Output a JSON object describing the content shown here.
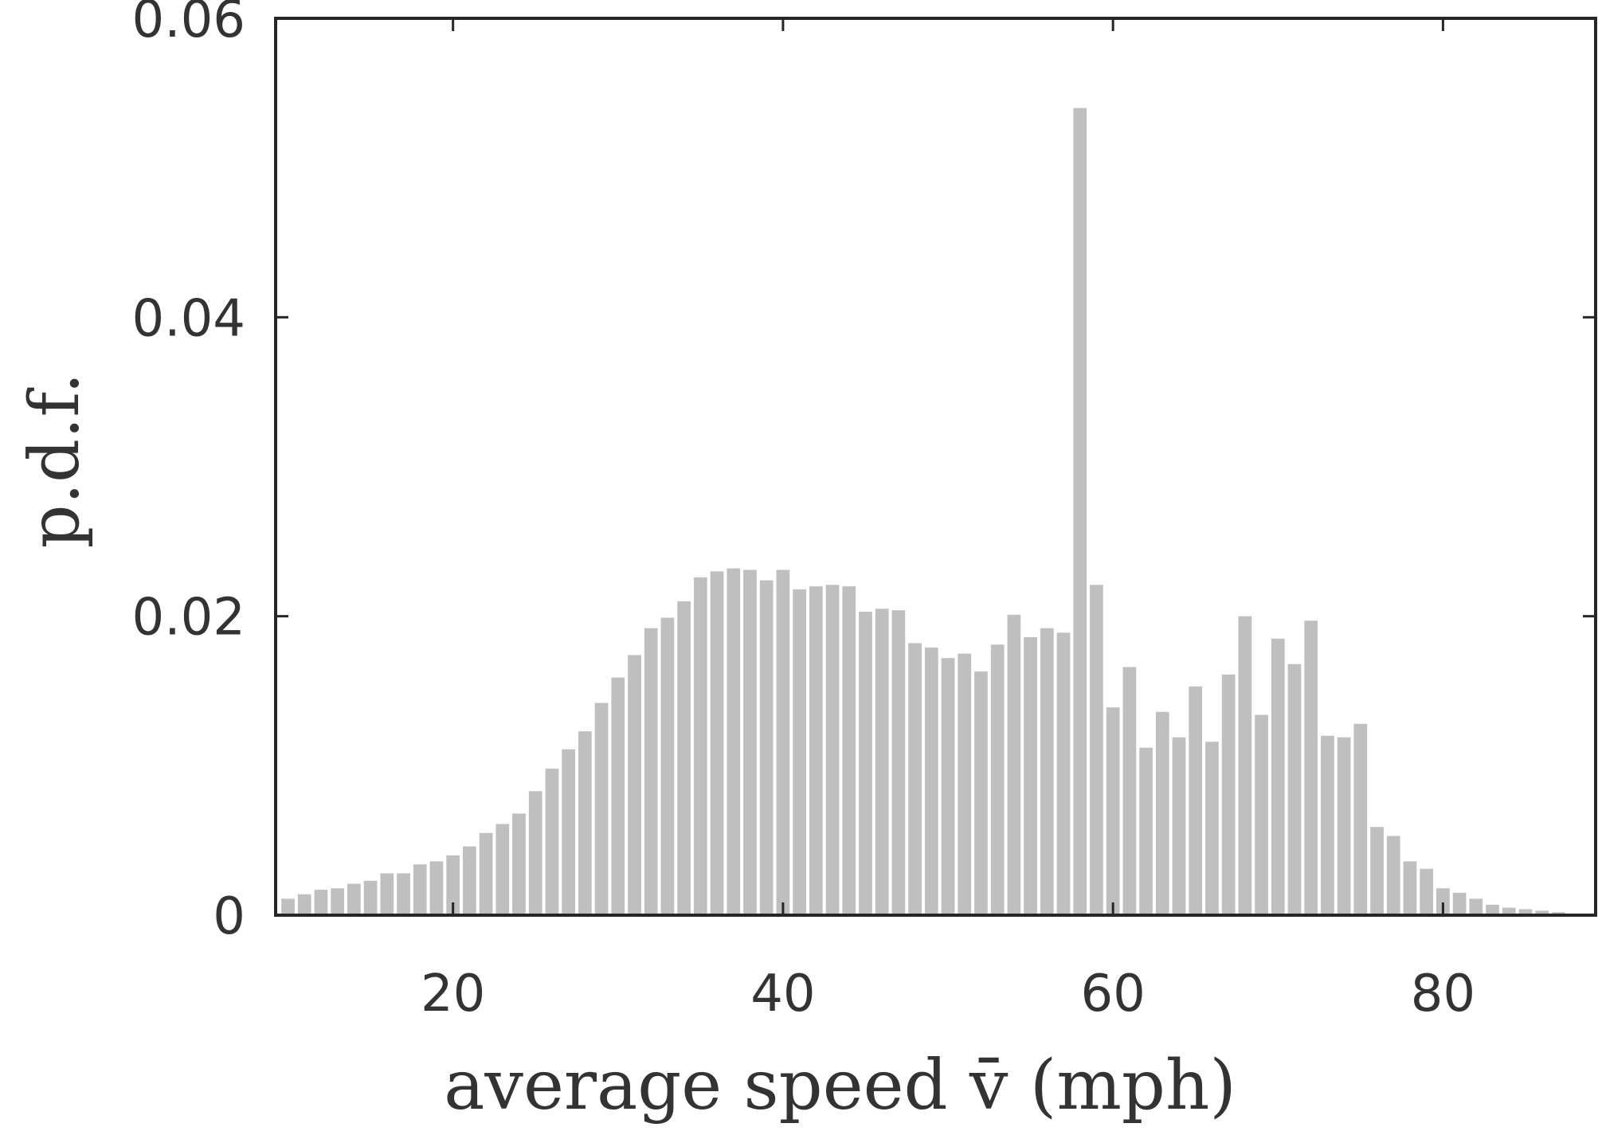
{
  "chart_data": {
    "type": "bar",
    "xlabel": "average speed v̄ (mph)",
    "ylabel": "p.d.f.",
    "xlim": [
      9.25,
      89.25
    ],
    "ylim": [
      0,
      0.06
    ],
    "xticks": [
      20,
      40,
      60,
      80
    ],
    "yticks": [
      0,
      0.02,
      0.04,
      0.06
    ],
    "xtick_labels": [
      "20",
      "40",
      "60",
      "80"
    ],
    "ytick_labels": [
      "0",
      "0.02",
      "0.04",
      "0.06"
    ],
    "bin_width": 1,
    "x": [
      10,
      11,
      12,
      13,
      14,
      15,
      16,
      17,
      18,
      19,
      20,
      21,
      22,
      23,
      24,
      25,
      26,
      27,
      28,
      29,
      30,
      31,
      32,
      33,
      34,
      35,
      36,
      37,
      38,
      39,
      40,
      41,
      42,
      43,
      44,
      45,
      46,
      47,
      48,
      49,
      50,
      51,
      52,
      53,
      54,
      55,
      56,
      57,
      58,
      59,
      60,
      61,
      62,
      63,
      64,
      65,
      66,
      67,
      68,
      69,
      70,
      71,
      72,
      73,
      74,
      75,
      76,
      77,
      78,
      79,
      80,
      81,
      82,
      83,
      84,
      85,
      86,
      87,
      88
    ],
    "values": [
      0.0011,
      0.0014,
      0.0017,
      0.0018,
      0.0021,
      0.0023,
      0.0028,
      0.0028,
      0.0034,
      0.0036,
      0.004,
      0.0046,
      0.0055,
      0.0061,
      0.0068,
      0.0083,
      0.0098,
      0.0111,
      0.0123,
      0.0142,
      0.0159,
      0.0174,
      0.0192,
      0.0199,
      0.021,
      0.0226,
      0.023,
      0.0232,
      0.0231,
      0.0224,
      0.0231,
      0.0218,
      0.022,
      0.0221,
      0.022,
      0.0203,
      0.0205,
      0.0204,
      0.0182,
      0.0179,
      0.0172,
      0.0175,
      0.0163,
      0.0181,
      0.0201,
      0.0186,
      0.0192,
      0.0189,
      0.054,
      0.0221,
      0.0139,
      0.0166,
      0.0112,
      0.0136,
      0.0119,
      0.0153,
      0.0116,
      0.0161,
      0.02,
      0.0134,
      0.0185,
      0.0168,
      0.0197,
      0.012,
      0.0119,
      0.0128,
      0.0059,
      0.0053,
      0.0036,
      0.0031,
      0.0018,
      0.0015,
      0.0011,
      0.0007,
      0.0005,
      0.0004,
      0.0003,
      0.0002,
      0.0001
    ],
    "bar_color": "#bfbfbf",
    "axis_color": "#262626",
    "grid": false,
    "box": true
  }
}
